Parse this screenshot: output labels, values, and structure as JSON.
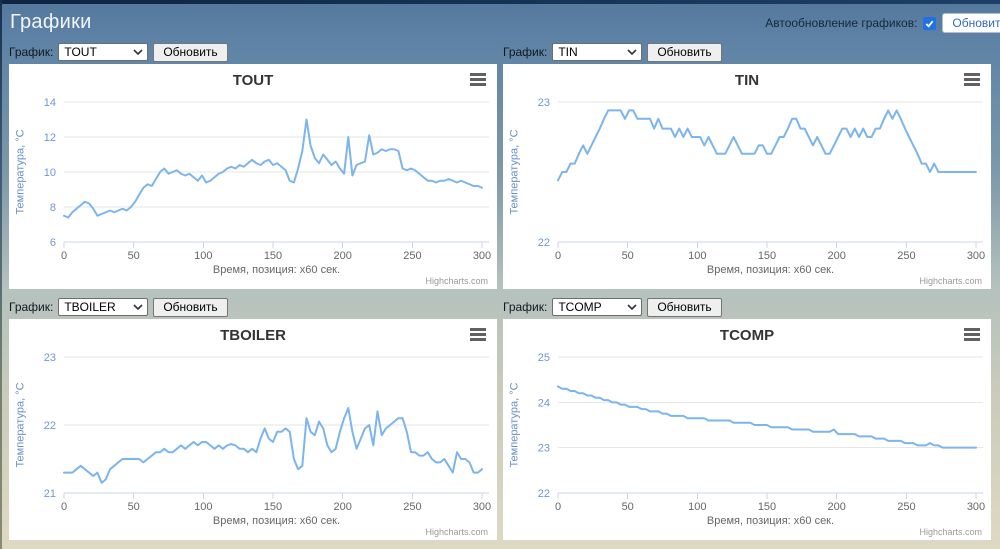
{
  "header": {
    "title": "Графики",
    "autorefresh_label": "Автообновление графиков:",
    "autorefresh_checked": true,
    "refresh_all_label": "Обновить все"
  },
  "controls": {
    "select_label": "График:",
    "refresh_label": "Обновить"
  },
  "panels": [
    {
      "selected": "TOUT"
    },
    {
      "selected": "TIN"
    },
    {
      "selected": "TBOILER"
    },
    {
      "selected": "TCOMP"
    }
  ],
  "colors": {
    "series": "#7cb5ec",
    "grid": "#e6e6e6",
    "axis": "#ccd6eb",
    "ytick": "#6f96d2",
    "xtick": "#666666"
  },
  "chart_data": [
    {
      "type": "line",
      "title": "TOUT",
      "ylabel": "Температура, °C",
      "xlabel": "Время, позиция: x60 сек.",
      "credits": "Highcharts.com",
      "ylim": [
        6,
        14
      ],
      "yticks": [
        6,
        8,
        10,
        12,
        14
      ],
      "xlim": [
        0,
        305
      ],
      "xticks": [
        0,
        50,
        100,
        150,
        200,
        250,
        300
      ],
      "x_step": 3,
      "series": [
        {
          "name": "TOUT",
          "color": "#7cb5ec",
          "values": [
            7.5,
            7.4,
            7.7,
            7.9,
            8.1,
            8.3,
            8.2,
            7.9,
            7.5,
            7.6,
            7.7,
            7.8,
            7.7,
            7.8,
            7.9,
            7.8,
            8.0,
            8.3,
            8.7,
            9.1,
            9.3,
            9.2,
            9.6,
            10.0,
            10.2,
            9.9,
            10.0,
            10.1,
            9.9,
            9.8,
            9.9,
            9.7,
            9.5,
            9.8,
            9.4,
            9.5,
            9.7,
            9.9,
            10.0,
            10.2,
            10.3,
            10.2,
            10.4,
            10.3,
            10.5,
            10.7,
            10.5,
            10.4,
            10.6,
            10.7,
            10.4,
            10.5,
            10.3,
            10.1,
            9.5,
            9.4,
            10.2,
            11.2,
            13.0,
            11.5,
            10.8,
            10.5,
            11.0,
            10.7,
            10.4,
            10.6,
            10.2,
            9.9,
            12.0,
            9.8,
            10.4,
            10.5,
            10.6,
            12.1,
            11.0,
            11.1,
            11.3,
            11.2,
            11.3,
            11.3,
            11.2,
            10.2,
            10.1,
            10.2,
            10.1,
            9.9,
            9.7,
            9.5,
            9.5,
            9.4,
            9.5,
            9.5,
            9.6,
            9.5,
            9.4,
            9.5,
            9.4,
            9.3,
            9.2,
            9.2,
            9.1
          ]
        }
      ]
    },
    {
      "type": "line",
      "title": "TIN",
      "ylabel": "Температура, °C",
      "xlabel": "Время, позиция: x60 сек.",
      "credits": "Highcharts.com",
      "ylim": [
        22,
        23
      ],
      "yticks": [
        22,
        23
      ],
      "xlim": [
        0,
        305
      ],
      "xticks": [
        0,
        50,
        100,
        150,
        200,
        250,
        300
      ],
      "x_step": 3,
      "series": [
        {
          "name": "TIN",
          "color": "#7cb5ec",
          "values": [
            22.44,
            22.5,
            22.5,
            22.56,
            22.56,
            22.63,
            22.69,
            22.63,
            22.69,
            22.75,
            22.81,
            22.88,
            22.94,
            22.94,
            22.94,
            22.94,
            22.88,
            22.94,
            22.94,
            22.88,
            22.88,
            22.88,
            22.88,
            22.81,
            22.88,
            22.81,
            22.81,
            22.81,
            22.75,
            22.81,
            22.75,
            22.81,
            22.75,
            22.75,
            22.75,
            22.69,
            22.75,
            22.69,
            22.63,
            22.63,
            22.63,
            22.69,
            22.75,
            22.69,
            22.63,
            22.63,
            22.63,
            22.63,
            22.69,
            22.69,
            22.63,
            22.63,
            22.69,
            22.75,
            22.75,
            22.81,
            22.88,
            22.88,
            22.81,
            22.81,
            22.75,
            22.69,
            22.75,
            22.69,
            22.63,
            22.63,
            22.69,
            22.75,
            22.81,
            22.81,
            22.75,
            22.81,
            22.75,
            22.81,
            22.75,
            22.75,
            22.81,
            22.81,
            22.88,
            22.94,
            22.88,
            22.94,
            22.88,
            22.81,
            22.75,
            22.69,
            22.63,
            22.56,
            22.56,
            22.5,
            22.56,
            22.5,
            22.5,
            22.5,
            22.5,
            22.5,
            22.5,
            22.5,
            22.5,
            22.5,
            22.5
          ]
        }
      ]
    },
    {
      "type": "line",
      "title": "TBOILER",
      "ylabel": "Температура, °C",
      "xlabel": "Время, позиция: x60 сек.",
      "credits": "Highcharts.com",
      "ylim": [
        21,
        23
      ],
      "yticks": [
        21,
        22,
        23
      ],
      "xlim": [
        0,
        305
      ],
      "xticks": [
        0,
        50,
        100,
        150,
        200,
        250,
        300
      ],
      "x_step": 3,
      "series": [
        {
          "name": "TBOILER",
          "color": "#7cb5ec",
          "values": [
            21.3,
            21.3,
            21.3,
            21.35,
            21.4,
            21.35,
            21.3,
            21.25,
            21.3,
            21.15,
            21.2,
            21.35,
            21.4,
            21.45,
            21.5,
            21.5,
            21.5,
            21.5,
            21.5,
            21.45,
            21.5,
            21.55,
            21.6,
            21.6,
            21.65,
            21.6,
            21.6,
            21.65,
            21.7,
            21.65,
            21.7,
            21.75,
            21.7,
            21.75,
            21.75,
            21.7,
            21.65,
            21.7,
            21.65,
            21.7,
            21.72,
            21.7,
            21.65,
            21.65,
            21.6,
            21.65,
            21.6,
            21.8,
            21.95,
            21.8,
            21.75,
            21.9,
            21.9,
            21.95,
            21.9,
            21.5,
            21.35,
            21.4,
            22.1,
            21.9,
            21.85,
            22.05,
            21.95,
            21.7,
            21.6,
            21.65,
            21.9,
            22.1,
            22.25,
            21.9,
            21.65,
            21.8,
            21.95,
            22.0,
            21.7,
            22.2,
            21.85,
            21.95,
            22.0,
            22.05,
            22.1,
            22.1,
            21.9,
            21.6,
            21.6,
            21.55,
            21.55,
            21.6,
            21.5,
            21.45,
            21.45,
            21.5,
            21.4,
            21.3,
            21.6,
            21.5,
            21.5,
            21.45,
            21.3,
            21.3,
            21.35
          ]
        }
      ]
    },
    {
      "type": "line",
      "title": "TCOMP",
      "ylabel": "Температура, °C",
      "xlabel": "Время, позиция: x60 сек.",
      "credits": "Highcharts.com",
      "ylim": [
        22,
        25
      ],
      "yticks": [
        22,
        23,
        24,
        25
      ],
      "xlim": [
        0,
        305
      ],
      "xticks": [
        0,
        50,
        100,
        150,
        200,
        250,
        300
      ],
      "x_step": 3,
      "series": [
        {
          "name": "TCOMP",
          "color": "#7cb5ec",
          "values": [
            24.35,
            24.3,
            24.3,
            24.25,
            24.25,
            24.2,
            24.2,
            24.15,
            24.15,
            24.1,
            24.1,
            24.05,
            24.05,
            24.0,
            24.0,
            23.95,
            23.95,
            23.9,
            23.9,
            23.9,
            23.85,
            23.85,
            23.8,
            23.8,
            23.8,
            23.75,
            23.75,
            23.7,
            23.7,
            23.7,
            23.7,
            23.65,
            23.65,
            23.65,
            23.65,
            23.65,
            23.6,
            23.6,
            23.6,
            23.6,
            23.6,
            23.6,
            23.55,
            23.55,
            23.55,
            23.55,
            23.55,
            23.5,
            23.5,
            23.5,
            23.5,
            23.45,
            23.45,
            23.45,
            23.45,
            23.45,
            23.4,
            23.4,
            23.4,
            23.4,
            23.4,
            23.35,
            23.35,
            23.35,
            23.35,
            23.35,
            23.4,
            23.3,
            23.3,
            23.3,
            23.3,
            23.3,
            23.25,
            23.25,
            23.25,
            23.25,
            23.2,
            23.2,
            23.2,
            23.15,
            23.15,
            23.15,
            23.15,
            23.1,
            23.1,
            23.1,
            23.05,
            23.05,
            23.05,
            23.1,
            23.05,
            23.05,
            23.0,
            23.0,
            23.0,
            23.0,
            23.0,
            23.0,
            23.0,
            23.0,
            23.0
          ]
        }
      ]
    }
  ]
}
